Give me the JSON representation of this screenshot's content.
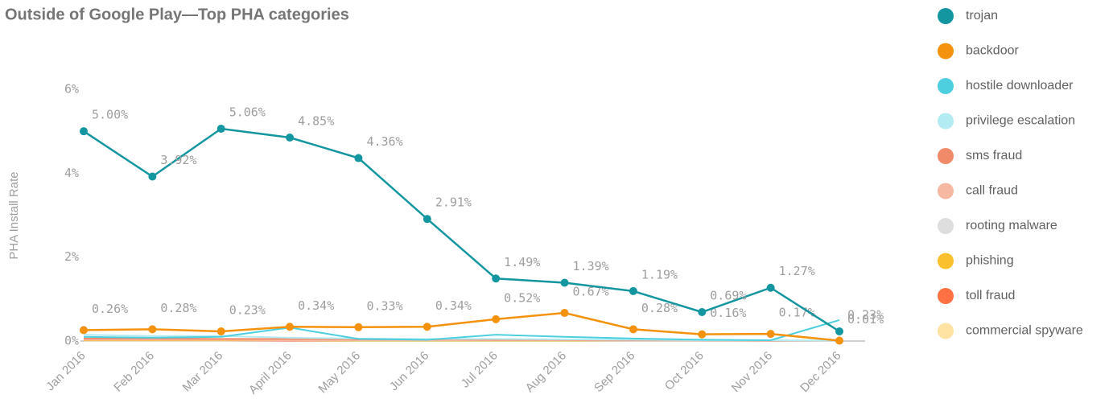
{
  "chart_data": {
    "type": "line",
    "title": "Outside of Google Play—Top PHA categories",
    "y_label": "PHA Install Rate",
    "categories": [
      "Jan 2016",
      "Feb 2016",
      "Mar 2016",
      "April 2016",
      "May 2016",
      "Jun 2016",
      "Jul 2016",
      "Aug 2016",
      "Sep 2016",
      "Oct 2016",
      "Nov 2016",
      "Dec 2016"
    ],
    "ylim": [
      0,
      6
    ],
    "yticks": [
      {
        "value": 0,
        "label": "0%"
      },
      {
        "value": 2,
        "label": "2%"
      },
      {
        "value": 4,
        "label": "4%"
      },
      {
        "value": 6,
        "label": "6%"
      }
    ],
    "grid": false,
    "legend": "right",
    "series": [
      {
        "name": "trojan",
        "color": "#13969f",
        "values": [
          5.0,
          3.92,
          5.06,
          4.85,
          4.36,
          2.91,
          1.49,
          1.39,
          1.19,
          0.69,
          1.27,
          0.23
        ],
        "value_labels": [
          "5.00%",
          "3.92%",
          "5.06%",
          "4.85%",
          "4.36%",
          "2.91%",
          "1.49%",
          "1.39%",
          "1.19%",
          "0.69%",
          "1.27%",
          "0.23%"
        ]
      },
      {
        "name": "backdoor",
        "color": "#f4920e",
        "values": [
          0.26,
          0.28,
          0.23,
          0.34,
          0.33,
          0.34,
          0.52,
          0.67,
          0.28,
          0.16,
          0.17,
          0.01
        ],
        "value_labels": [
          "0.26%",
          "0.28%",
          "0.23%",
          "0.34%",
          "0.33%",
          "0.34%",
          "0.52%",
          "0.67%",
          "0.28%",
          "0.16%",
          "0.17%",
          "0.01%"
        ]
      },
      {
        "name": "hostile downloader",
        "color": "#4dcfdf",
        "values": [
          0.1,
          0.08,
          0.1,
          0.32,
          0.05,
          0.03,
          0.15,
          0.1,
          0.06,
          0.03,
          0.02,
          0.5
        ]
      },
      {
        "name": "privilege escalation",
        "color": "#b3ebf2",
        "values": [
          0.15,
          0.12,
          0.12,
          0.08,
          0.06,
          0.05,
          0.05,
          0.04,
          0.03,
          0.02,
          0.02,
          0.01
        ]
      },
      {
        "name": "sms fraud",
        "color": "#f08a68",
        "values": [
          0.06,
          0.06,
          0.05,
          0.05,
          0.04,
          0.04,
          0.03,
          0.03,
          0.02,
          0.02,
          0.01,
          0.01
        ]
      },
      {
        "name": "call fraud",
        "color": "#f7b8a2",
        "values": [
          0.03,
          0.03,
          0.03,
          0.02,
          0.02,
          0.02,
          0.02,
          0.02,
          0.01,
          0.01,
          0.01,
          0.01
        ]
      },
      {
        "name": "rooting malware",
        "color": "#dedede",
        "values": [
          0.04,
          0.04,
          0.03,
          0.03,
          0.03,
          0.02,
          0.02,
          0.02,
          0.02,
          0.01,
          0.01,
          0.01
        ]
      },
      {
        "name": "phishing",
        "color": "#fbc02d",
        "values": [
          0.02,
          0.02,
          0.02,
          0.02,
          0.01,
          0.01,
          0.01,
          0.01,
          0.01,
          0.01,
          0.01,
          0.01
        ]
      },
      {
        "name": "toll fraud",
        "color": "#ff7043",
        "values": [
          0.02,
          0.02,
          0.02,
          0.01,
          0.01,
          0.01,
          0.01,
          0.01,
          0.01,
          0.01,
          0.01,
          0.01
        ]
      },
      {
        "name": "commercial spyware",
        "color": "#ffe3a3",
        "values": [
          0.01,
          0.01,
          0.01,
          0.01,
          0.01,
          0.01,
          0.01,
          0.01,
          0.01,
          0.01,
          0.01,
          0.01
        ]
      }
    ]
  }
}
